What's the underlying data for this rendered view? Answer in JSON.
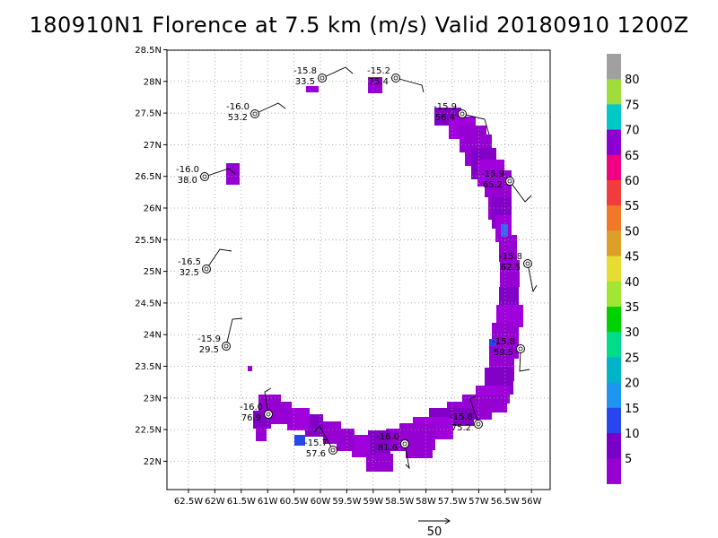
{
  "title": "180910N1 Florence at 7.5 km (m/s) Valid 20180910 1200Z",
  "axes": {
    "lon_labels": [
      "62.5W",
      "62W",
      "61.5W",
      "61W",
      "60.5W",
      "60W",
      "59.5W",
      "59W",
      "58.5W",
      "58W",
      "57.5W",
      "57W",
      "56.5W",
      "56W"
    ],
    "lat_labels": [
      "28.5N",
      "28N",
      "27.5N",
      "27N",
      "26.5N",
      "26N",
      "25.5N",
      "25N",
      "24.5N",
      "24N",
      "23.5N",
      "23N",
      "22.5N",
      "22N"
    ]
  },
  "colorbar": {
    "labels": [
      "80",
      "75",
      "70",
      "65",
      "60",
      "55",
      "50",
      "45",
      "40",
      "35",
      "30",
      "25",
      "20",
      "15",
      "10",
      "5"
    ],
    "colors": [
      "#a0a0a0",
      "#a0dc3c",
      "#00c8c8",
      "#8c00d2",
      "#f00082",
      "#f03c3c",
      "#f07828",
      "#dca028",
      "#e6dc32",
      "#a0e632",
      "#00d200",
      "#00dc8c",
      "#00b4c8",
      "#1e96f0",
      "#2846f0",
      "#7800c8",
      "#9600d2"
    ]
  },
  "stations": [
    {
      "temp": "-15.8",
      "speed": "33.5"
    },
    {
      "temp": "-15.2",
      "speed": "75.4"
    },
    {
      "temp": "-16.0",
      "speed": "53.2"
    },
    {
      "temp": "-15.9",
      "speed": "56.4"
    },
    {
      "temp": "-16.0",
      "speed": "38.0"
    },
    {
      "temp": "-15.9",
      "speed": "65.2"
    },
    {
      "temp": "-16.5",
      "speed": "32.5"
    },
    {
      "temp": "-15.8",
      "speed": "62.5"
    },
    {
      "temp": "-15.9",
      "speed": "29.5"
    },
    {
      "temp": "-15.8",
      "speed": "59.5"
    },
    {
      "temp": "-16.0",
      "speed": "76.9"
    },
    {
      "temp": "-15.8",
      "speed": "75.2"
    },
    {
      "temp": "-15.7",
      "speed": "57.6"
    },
    {
      "temp": "-16.0",
      "speed": "81.6"
    }
  ],
  "scale_vector": {
    "label": "50"
  }
}
